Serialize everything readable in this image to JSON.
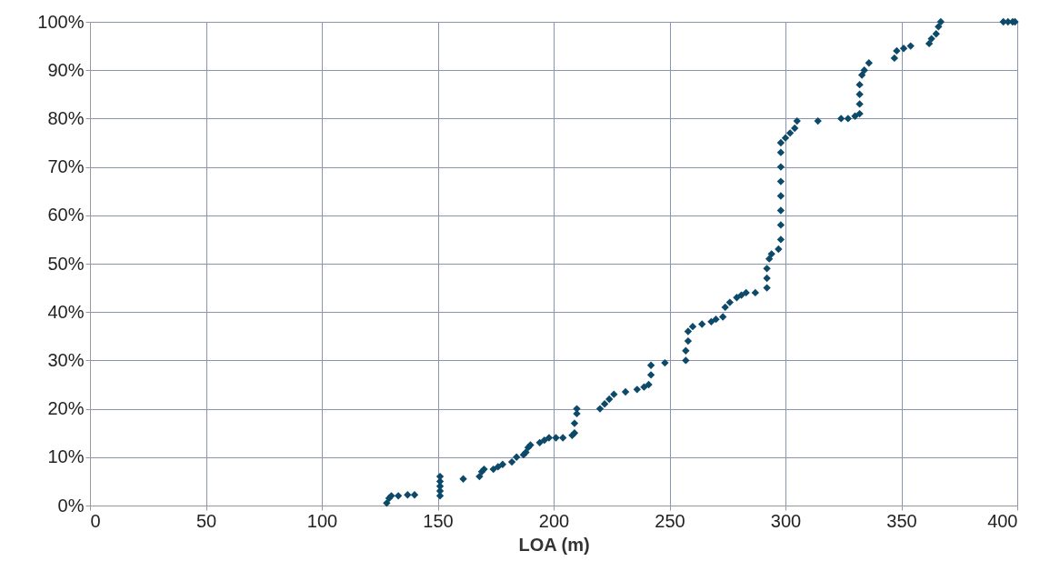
{
  "chart_data": {
    "type": "scatter",
    "xlabel": "LOA (m)",
    "marker": "diamond",
    "grid": true,
    "xlim": [
      0,
      400
    ],
    "xticks": [
      0,
      50,
      100,
      150,
      200,
      250,
      300,
      350,
      400
    ],
    "ylim": [
      0,
      100
    ],
    "yticks": [
      {
        "value": 0,
        "label": "0%"
      },
      {
        "value": 10,
        "label": "10%"
      },
      {
        "value": 20,
        "label": "20%"
      },
      {
        "value": 30,
        "label": "30%"
      },
      {
        "value": 40,
        "label": "40%"
      },
      {
        "value": 50,
        "label": "50%"
      },
      {
        "value": 60,
        "label": "60%"
      },
      {
        "value": 70,
        "label": "70%"
      },
      {
        "value": 80,
        "label": "80%"
      },
      {
        "value": 90,
        "label": "90%"
      },
      {
        "value": 100,
        "label": "100%"
      }
    ],
    "series": [
      {
        "color": "#0d4a6a",
        "x": [
          128,
          129,
          130,
          133,
          137,
          140,
          151,
          151,
          151,
          151,
          151,
          161,
          168,
          169,
          170,
          174,
          176,
          178,
          182,
          184,
          187,
          188,
          189,
          190,
          194,
          196,
          198,
          201,
          204,
          208,
          209,
          209,
          210,
          210,
          220,
          222,
          224,
          226,
          231,
          236,
          239,
          241,
          242,
          242,
          248,
          257,
          257,
          258,
          258,
          260,
          264,
          268,
          270,
          273,
          274,
          276,
          279,
          281,
          283,
          287,
          292,
          292,
          292,
          293,
          294,
          297,
          298,
          298,
          298,
          298,
          298,
          298,
          298,
          298,
          300,
          302,
          304,
          305,
          314,
          324,
          327,
          330,
          332,
          332,
          332,
          332,
          333,
          334,
          336,
          347,
          348,
          351,
          354,
          362,
          363,
          365,
          366,
          367,
          394,
          396,
          398,
          399
        ],
        "values": [
          0.5,
          1.5,
          2,
          2,
          2.2,
          2.2,
          2,
          3,
          4,
          5,
          6,
          5.5,
          6,
          7,
          7.5,
          7.5,
          8,
          8.5,
          9,
          10,
          10.5,
          11,
          12,
          12.5,
          13,
          13.5,
          14,
          14,
          14,
          14.5,
          15,
          17,
          19,
          20,
          20,
          21,
          22,
          23,
          23.5,
          24,
          24.5,
          25,
          27,
          29,
          29.5,
          30,
          32,
          34,
          36,
          37,
          37.5,
          38,
          38.5,
          39,
          41,
          42,
          43,
          43.5,
          44,
          44,
          45,
          47,
          49,
          51,
          52,
          53,
          55,
          58,
          61,
          64,
          67,
          70,
          73,
          75,
          76,
          77,
          78,
          79.5,
          79.5,
          80,
          80,
          80.5,
          81,
          83,
          85,
          87,
          89,
          90,
          91.5,
          92.5,
          94,
          94.5,
          95,
          95.5,
          96.5,
          97.5,
          99,
          100,
          100,
          100,
          100,
          100
        ]
      }
    ]
  }
}
